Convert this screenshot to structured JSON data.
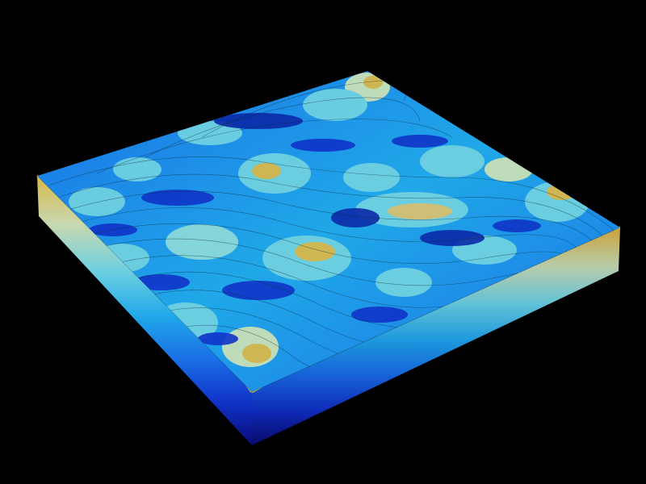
{
  "scene": {
    "background_color": "#000000",
    "subject": "terrain-block",
    "colormap": [
      "#0a0a7a",
      "#1033c8",
      "#1a6fe6",
      "#20a8e8",
      "#6fd0e0",
      "#c8e0b8",
      "#d8b84a",
      "#c08a1a"
    ],
    "wireframe_color": "#0b2a3a"
  }
}
